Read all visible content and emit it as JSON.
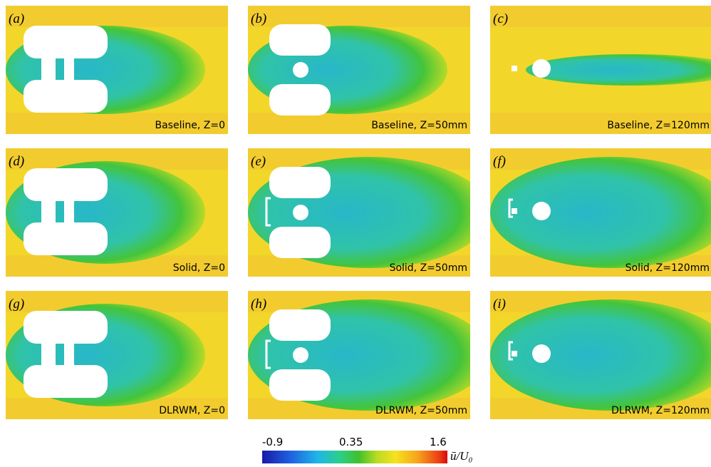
{
  "panels": [
    {
      "label": "(a)",
      "caption": "Baseline, Z=0"
    },
    {
      "label": "(b)",
      "caption": "Baseline, Z=50mm"
    },
    {
      "label": "(c)",
      "caption": "Baseline, Z=120mm"
    },
    {
      "label": "(d)",
      "caption": "Solid, Z=0"
    },
    {
      "label": "(e)",
      "caption": "Solid, Z=50mm"
    },
    {
      "label": "(f)",
      "caption": "Solid, Z=120mm"
    },
    {
      "label": "(g)",
      "caption": "DLRWM, Z=0"
    },
    {
      "label": "(h)",
      "caption": "DLRWM, Z=50mm"
    },
    {
      "label": "(i)",
      "caption": "DLRWM, Z=120mm"
    }
  ],
  "colorbar": {
    "ticks": [
      "-0.9",
      "0.35",
      "1.6"
    ],
    "label": "ū/U₀"
  }
}
